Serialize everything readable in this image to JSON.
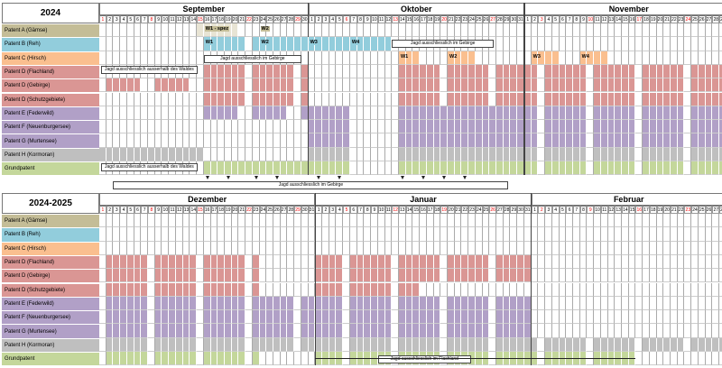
{
  "colors": {
    "A": "#c4bd97",
    "B": "#92cddc",
    "C": "#fabf8f",
    "D": "#da9694",
    "E": "#b1a0c7",
    "H": "#bfbfbf",
    "G": "#c4d79b"
  },
  "patent_labels": [
    "Patent A (Gämse)",
    "Patent B (Reh)",
    "Patent C (Hirsch)",
    "Patent D (Flachland)",
    "Patent D (Gebirge)",
    "Patent D (Schutzgebiete)",
    "Patent E (Federwild)",
    "Patent F (Neuenburgersee)",
    "Patent G (Murtensee)",
    "Patent H (Kormoran)",
    "Grundpatent"
  ],
  "block1": {
    "title": "2024",
    "months": [
      {
        "name": "September",
        "days": 30,
        "red_days": [
          1,
          8,
          15,
          22,
          29
        ]
      },
      {
        "name": "Oktober",
        "days": 31,
        "red_days": [
          6,
          13,
          20,
          27
        ]
      },
      {
        "name": "November",
        "days": 30,
        "red_days": [
          3,
          10,
          17,
          24
        ]
      }
    ],
    "annotations": {
      "w1_spez": "W1 - spez",
      "w2_sep": "W2",
      "w1_b_sep": "W1",
      "w2_b_sep": "W2",
      "w3_b_oct": "W3",
      "w4_b_oct": "W4",
      "w1_c_oct": "W1",
      "w2_c_oct": "W2",
      "w3_c_nov": "W3",
      "w4_c_nov": "W4"
    },
    "notes": {
      "jagd_gebirge_sep": "Jagd ausschliesslich im Gebirge",
      "jagd_gebirge_oct": "Jagd ausschliesslich im Gebirge",
      "jagd_wald_d": "Jagd ausschliesslich ausserhalb des Waldes",
      "jagd_wald_g": "Jagd ausschliesslich ausserhalb des Waldes",
      "jagd_gebirge_bottom": "Jagd ausschliesslich im Gebirge"
    }
  },
  "block2": {
    "title": "2024-2025",
    "months": [
      {
        "name": "Dezember",
        "days": 31,
        "red_days": [
          1,
          8,
          15,
          22,
          29
        ]
      },
      {
        "name": "Januar",
        "days": 31,
        "red_days": [
          5,
          12,
          19,
          26
        ]
      },
      {
        "name": "Februar",
        "days": 28,
        "red_days": [
          2,
          9,
          16,
          23
        ]
      }
    ],
    "notes": {
      "jagd_flachland": "Jagd ausschliesslich im Flachland"
    }
  }
}
